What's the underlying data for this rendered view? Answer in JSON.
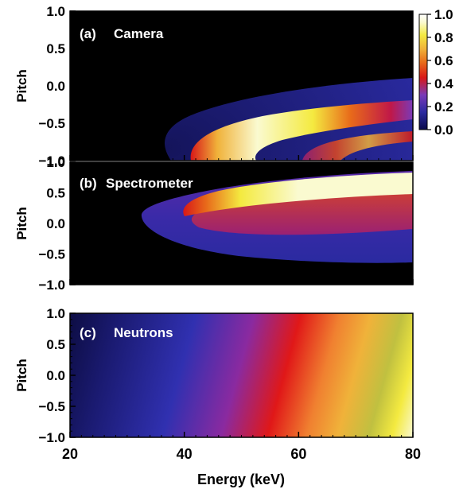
{
  "chart_data": [
    {
      "type": "heatmap",
      "panel_label": "(a)",
      "title": "Camera",
      "xlabel": "",
      "ylabel": "Pitch",
      "xlim": [
        20,
        80
      ],
      "ylim": [
        -1.0,
        1.0
      ],
      "y_ticks": [
        "1.0",
        "0.5",
        "0.0",
        "−0.5",
        "−1.0"
      ],
      "background": "#000000",
      "regions": [
        {
          "region": "outer envelope",
          "x_range": [
            31,
            80
          ],
          "pitch_range": [
            -1.0,
            -0.2
          ],
          "value": 0.1
        },
        {
          "region": "peak band",
          "x_range": [
            38,
            52
          ],
          "pitch_range": [
            -1.0,
            -0.6
          ],
          "value": 1.0
        },
        {
          "region": "secondary band",
          "x_range": [
            55,
            70
          ],
          "pitch_range": [
            -1.0,
            -0.5
          ],
          "value": 0.6
        }
      ]
    },
    {
      "type": "heatmap",
      "panel_label": "(b)",
      "title": "Spectrometer",
      "xlabel": "",
      "ylabel": "Pitch",
      "xlim": [
        20,
        80
      ],
      "ylim": [
        -1.0,
        1.0
      ],
      "y_ticks": [
        "1.0",
        "0.5",
        "0.0",
        "−0.5",
        "−1.0"
      ],
      "background": "#000000",
      "regions": [
        {
          "region": "outer envelope",
          "x_range": [
            33,
            80
          ],
          "pitch_range": [
            -0.65,
            0.85
          ],
          "value": 0.1
        },
        {
          "region": "peak band",
          "x_range": [
            45,
            80
          ],
          "pitch_range": [
            0.3,
            0.85
          ],
          "value": 1.0
        }
      ]
    },
    {
      "type": "heatmap",
      "panel_label": "(c)",
      "title": "Neutrons",
      "xlabel": "Energy (keV)",
      "ylabel": "Pitch",
      "xlim": [
        20,
        80
      ],
      "ylim": [
        -1.0,
        1.0
      ],
      "x_ticks": [
        "20",
        "40",
        "60",
        "80"
      ],
      "y_ticks": [
        "1.0",
        "0.5",
        "0.0",
        "−0.5",
        "−1.0"
      ],
      "trend": "value increases with energy, slightly higher at negative pitch; ~0.05 at 20 keV, ~0.5 near 60 keV, ~1.0 at 80 keV"
    }
  ],
  "colorbar": {
    "ticks": [
      "1.0",
      "0.8",
      "0.6",
      "0.4",
      "0.2",
      "0.0"
    ],
    "range": [
      0.0,
      1.0
    ],
    "colormap": [
      "#0a0a4a",
      "#2a2aa0",
      "#7a3ab8",
      "#d81818",
      "#e86a1a",
      "#f0b23a",
      "#f4ea40",
      "#fafad0",
      "#ffffff"
    ]
  }
}
